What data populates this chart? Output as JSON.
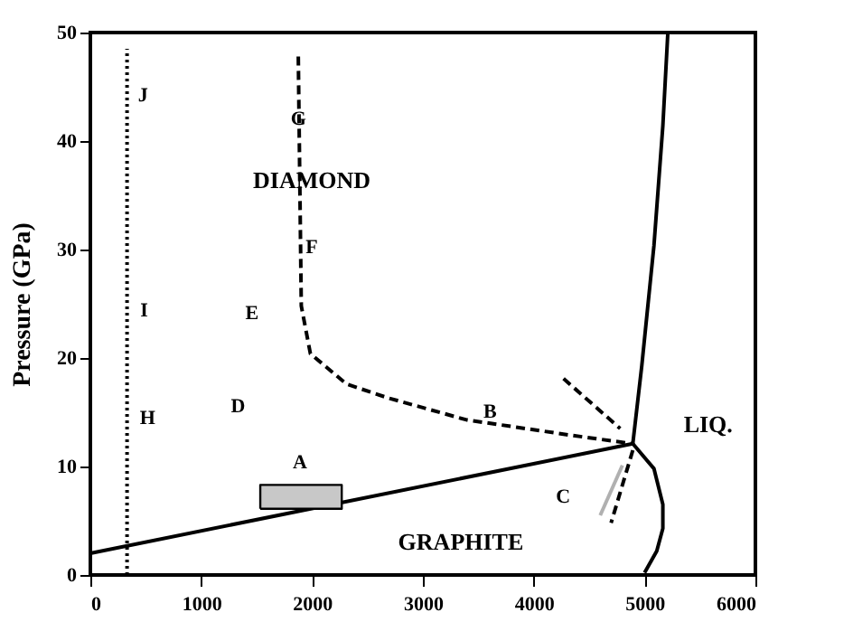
{
  "chart_data": {
    "type": "line",
    "ylabel": "Pressure (GPa)",
    "xlim": [
      0,
      6000
    ],
    "ylim": [
      0,
      50
    ],
    "xticks": [
      0,
      1000,
      2000,
      3000,
      4000,
      5000,
      6000
    ],
    "yticks": [
      0,
      10,
      20,
      30,
      40,
      50
    ],
    "marker": "none",
    "series": [
      {
        "color": "#000000",
        "line_style": "solid",
        "x": [
          0,
          4894
        ],
        "values": [
          2.0,
          12.1
        ]
      },
      {
        "color": "#000000",
        "line_style": "solid",
        "x": [
          4894,
          4975,
          5085,
          5165,
          5210
        ],
        "values": [
          12.1,
          19.3,
          30.4,
          41.4,
          50.0
        ]
      },
      {
        "color": "#000000",
        "line_style": "solid",
        "x": [
          4894,
          5085,
          5165,
          5165,
          5110,
          5000
        ],
        "values": [
          12.1,
          9.8,
          6.5,
          4.3,
          2.2,
          0.2
        ]
      },
      {
        "color": "#000000",
        "line_style": "dashed",
        "x": [
          1876,
          1903,
          1985,
          2311,
          2692,
          3394,
          4323,
          4894
        ],
        "values": [
          47.8,
          24.8,
          20.4,
          17.6,
          16.3,
          14.3,
          12.9,
          12.1
        ]
      },
      {
        "color": "#000000",
        "line_style": "dashed",
        "x": [
          4269,
          4780
        ],
        "values": [
          18.1,
          13.5
        ]
      },
      {
        "color": "#000000",
        "line_style": "dashed",
        "x": [
          4894,
          4698
        ],
        "values": [
          11.5,
          4.8
        ]
      },
      {
        "color": "#000000",
        "line_style": "dotted",
        "x": [
          331,
          331
        ],
        "values": [
          0,
          48.5
        ]
      },
      {
        "type": "area",
        "color": "#c8c8c8",
        "x": [
          1533,
          2268,
          2268,
          1533,
          1533
        ],
        "values": [
          6.1,
          6.1,
          8.3,
          8.3,
          6.1
        ]
      },
      {
        "color": "#b0b0b0",
        "line_style": "solid",
        "x": [
          4600,
          4800
        ],
        "values": [
          5.5,
          10.1
        ]
      }
    ],
    "annotations": [
      "J",
      "G",
      "DIAMOND",
      "F",
      "I",
      "E",
      "D",
      "H",
      "A",
      "B",
      "C",
      "LIQ.",
      "GRAPHITE"
    ]
  }
}
